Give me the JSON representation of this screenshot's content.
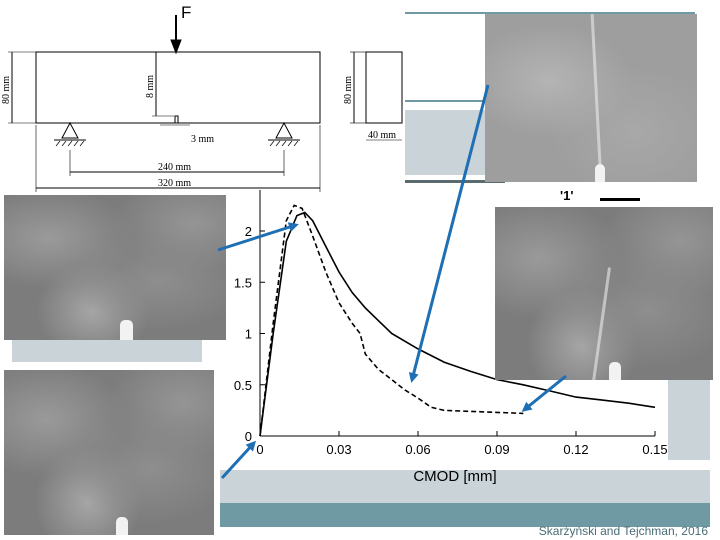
{
  "beam_diagram": {
    "force_label": "F",
    "height_label": "80 mm",
    "notch_depth_label": "8 mm",
    "notch_width_label": "3 mm",
    "span_label": "240 mm",
    "length_label": "320 mm",
    "section_height_label": "80 mm",
    "section_width_label": "40 mm"
  },
  "inset_label": "'1'",
  "credit": "Skarżyński and Tejchman, 2016",
  "chart_data": {
    "type": "line",
    "xlabel": "CMOD [mm]",
    "xlim": [
      0,
      0.15
    ],
    "ylim": [
      0,
      2.4
    ],
    "x_ticks": [
      0,
      0.03,
      0.06,
      0.09,
      0.12,
      0.15
    ],
    "x_tick_labels": [
      "0",
      "0.03",
      "0.06",
      "0.09",
      "0.12",
      "0.15"
    ],
    "y_ticks": [
      0,
      0.5,
      1,
      1.5,
      2
    ],
    "y_tick_labels": [
      "0",
      "0.5",
      "1",
      "1.5",
      "2"
    ],
    "series": [
      {
        "style": "solid",
        "x": [
          0,
          0.005,
          0.01,
          0.014,
          0.017,
          0.02,
          0.025,
          0.03,
          0.035,
          0.04,
          0.05,
          0.06,
          0.07,
          0.08,
          0.09,
          0.1,
          0.11,
          0.12,
          0.13,
          0.14,
          0.15
        ],
        "y": [
          0,
          1.0,
          1.9,
          2.15,
          2.18,
          2.1,
          1.85,
          1.6,
          1.4,
          1.25,
          1.0,
          0.85,
          0.72,
          0.63,
          0.55,
          0.5,
          0.44,
          0.38,
          0.35,
          0.32,
          0.28
        ]
      },
      {
        "style": "dashed",
        "x": [
          0,
          0.005,
          0.01,
          0.013,
          0.016,
          0.02,
          0.025,
          0.03,
          0.035,
          0.038,
          0.04,
          0.045,
          0.05,
          0.055,
          0.06,
          0.065,
          0.07,
          0.08,
          0.09,
          0.1
        ],
        "y": [
          0,
          1.1,
          2.1,
          2.25,
          2.22,
          1.95,
          1.6,
          1.3,
          1.1,
          1.0,
          0.8,
          0.65,
          0.55,
          0.45,
          0.37,
          0.28,
          0.25,
          0.24,
          0.23,
          0.22
        ]
      }
    ]
  }
}
